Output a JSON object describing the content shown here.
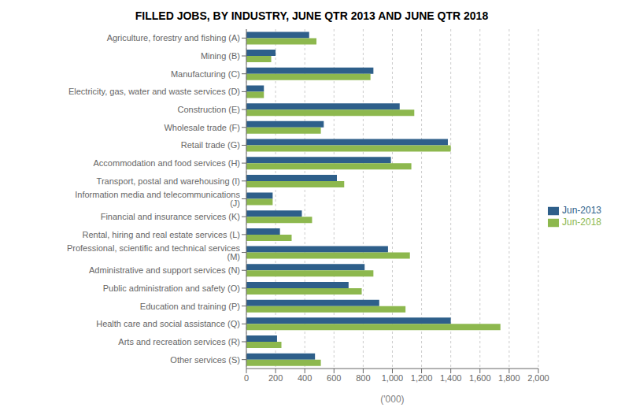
{
  "chart_data": {
    "type": "bar",
    "orientation": "horizontal",
    "title": "FILLED JOBS, BY INDUSTRY, JUNE QTR 2013 AND JUNE QTR 2018",
    "xlabel": "('000)",
    "categories": [
      "Agriculture, forestry and fishing (A)",
      "Mining (B)",
      "Manufacturing (C)",
      "Electricity, gas, water and waste services (D)",
      "Construction (E)",
      "Wholesale trade (F)",
      "Retail trade (G)",
      "Accommodation and food services (H)",
      "Transport, postal and warehousing (I)",
      "Information media and telecommunications (J)",
      "Financial and insurance services (K)",
      "Rental, hiring and real estate services (L)",
      "Professional, scientific and technical services (M)",
      "Administrative and support services (N)",
      "Public administration and safety (O)",
      "Education and training (P)",
      "Health care and social assistance (Q)",
      "Arts and recreation services (R)",
      "Other services (S)"
    ],
    "series": [
      {
        "name": "Jun-2013",
        "color": "#2E5F8A",
        "values": [
          430,
          200,
          870,
          120,
          1050,
          530,
          1380,
          990,
          620,
          180,
          380,
          230,
          970,
          810,
          700,
          910,
          1400,
          210,
          470
        ]
      },
      {
        "name": "Jun-2018",
        "color": "#8DB84E",
        "values": [
          480,
          170,
          850,
          120,
          1150,
          510,
          1400,
          1130,
          670,
          180,
          450,
          310,
          1120,
          870,
          790,
          1090,
          1740,
          240,
          510
        ]
      }
    ],
    "xlim": [
      0,
      2000
    ],
    "xticks": [
      0,
      200,
      400,
      600,
      800,
      {
        "value": 1000,
        "label": "1,000"
      },
      {
        "value": 1200,
        "label": "1,200"
      },
      {
        "value": 1400,
        "label": "1,400"
      },
      {
        "value": 1600,
        "label": "1,600"
      },
      {
        "value": 1800,
        "label": "1,800"
      },
      {
        "value": 2000,
        "label": "2,000"
      }
    ],
    "grid": true,
    "legend": "right"
  }
}
